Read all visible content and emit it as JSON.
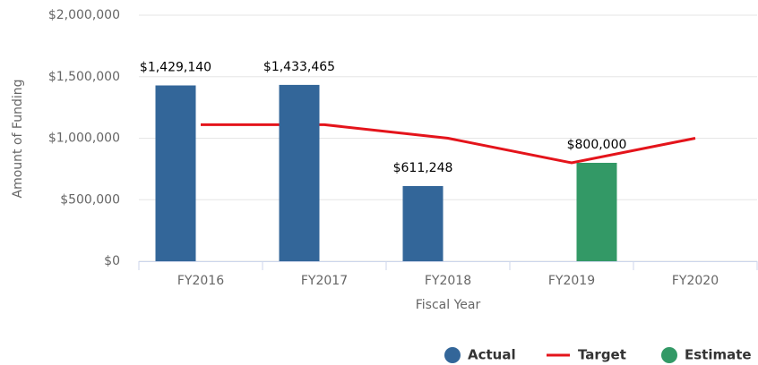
{
  "chart_data": {
    "type": "bar",
    "y_axis_label": "Amount of Funding",
    "x_axis_label": "Fiscal Year",
    "categories": [
      "FY2016",
      "FY2017",
      "FY2018",
      "FY2019",
      "FY2020"
    ],
    "series": [
      {
        "name": "Actual",
        "type": "bar",
        "color": "#336699",
        "values": [
          1429140,
          1433465,
          611248,
          null,
          null
        ],
        "value_labels": [
          "$1,429,140",
          "$1,433,465",
          "$611,248",
          null,
          null
        ]
      },
      {
        "name": "Target",
        "type": "line",
        "color": "#e4141b",
        "values": [
          1110000,
          1110000,
          1000000,
          800000,
          1000000
        ]
      },
      {
        "name": "Estimate",
        "type": "bar",
        "color": "#339966",
        "values": [
          null,
          null,
          null,
          800000,
          null
        ],
        "value_labels": [
          null,
          null,
          null,
          "$800,000",
          null
        ]
      }
    ],
    "ylim": [
      0,
      2000000
    ],
    "yticks": [
      {
        "value": 0,
        "label": "$0"
      },
      {
        "value": 500000,
        "label": "$500,000"
      },
      {
        "value": 1000000,
        "label": "$1,000,000"
      },
      {
        "value": 1500000,
        "label": "$1,500,000"
      },
      {
        "value": 2000000,
        "label": "$2,000,000"
      }
    ],
    "grid": true,
    "legend": "bottom-right"
  }
}
